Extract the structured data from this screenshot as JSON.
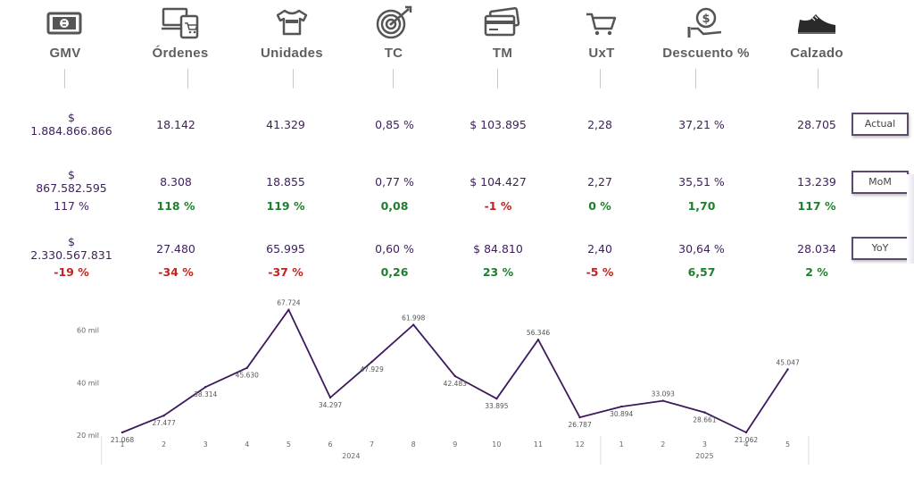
{
  "kpis": [
    {
      "label": "GMV",
      "icon": "cash-icon"
    },
    {
      "label": "Órdenes",
      "icon": "devices-cart-icon"
    },
    {
      "label": "Unidades",
      "icon": "tshirt-icon"
    },
    {
      "label": "TC",
      "icon": "target-icon"
    },
    {
      "label": "TM",
      "icon": "credit-card-icon"
    },
    {
      "label": "UxT",
      "icon": "shopping-cart-icon"
    },
    {
      "label": "Descuento %",
      "icon": "discount-icon"
    },
    {
      "label": "Calzado",
      "icon": "shoe-icon"
    }
  ],
  "rows": {
    "actual": {
      "button": "Actual",
      "values": [
        "$\n1.884.866.866",
        "18.142",
        "41.329",
        "0,85 %",
        "$ 103.895",
        "2,28",
        "37,21 %",
        "28.705"
      ]
    },
    "mom": {
      "button": "MoM",
      "values": [
        "$\n867.582.595",
        "8.308",
        "18.855",
        "0,77 %",
        "$ 104.427",
        "2,27",
        "35,51 %",
        "13.239"
      ],
      "deltas": [
        "117 %",
        "118 %",
        "119 %",
        "0,08",
        "-1 %",
        "0 %",
        "1,70",
        "117 %"
      ],
      "delta_sign": [
        "pos",
        "pos",
        "pos",
        "pos",
        "neg",
        "pos",
        "pos",
        "pos"
      ]
    },
    "yoy": {
      "button": "YoY",
      "values": [
        "$\n2.330.567.831",
        "27.480",
        "65.995",
        "0,60 %",
        "$ 84.810",
        "2,40",
        "30,64 %",
        "28.034"
      ],
      "deltas": [
        "-19 %",
        "-34 %",
        "-37 %",
        "0,26",
        "23 %",
        "-5 %",
        "6,57",
        "2 %"
      ],
      "delta_sign": [
        "neg",
        "neg",
        "neg",
        "pos",
        "pos",
        "neg",
        "pos",
        "pos"
      ]
    }
  },
  "colors": {
    "value_text": "#3c1f5c",
    "positive": "#1f7f2e",
    "negative": "#c2231e",
    "line": "#3d1a5e"
  },
  "chart_data": {
    "type": "line",
    "categories": [
      "1",
      "2",
      "3",
      "4",
      "5",
      "6",
      "7",
      "8",
      "9",
      "10",
      "11",
      "12",
      "1",
      "2",
      "3",
      "4",
      "5"
    ],
    "years": [
      {
        "label": "2024",
        "from": 0,
        "to": 11
      },
      {
        "label": "2025",
        "from": 12,
        "to": 16
      }
    ],
    "values": [
      21068,
      27477,
      38314,
      45630,
      67724,
      34297,
      47929,
      61998,
      42483,
      33895,
      56346,
      26787,
      30894,
      33093,
      28661,
      21062,
      45047
    ],
    "labels": [
      "21.068",
      "27.477",
      "38.314",
      "45.630",
      "67.724",
      "34.297",
      "47.929",
      "61.998",
      "42.483",
      "33.895",
      "56.346",
      "26.787",
      "30.894",
      "33.093",
      "28.661",
      "21.062",
      "45.047"
    ],
    "yticks": [
      {
        "value": 20000,
        "label": "20 mil"
      },
      {
        "value": 40000,
        "label": "40 mil"
      },
      {
        "value": 60000,
        "label": "60 mil"
      }
    ],
    "ylim": [
      18000,
      70000
    ]
  }
}
